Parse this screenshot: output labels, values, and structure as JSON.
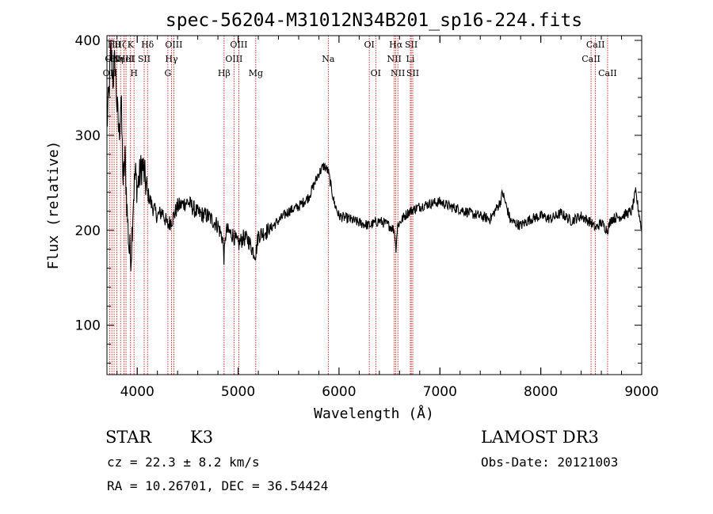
{
  "chart_data": {
    "type": "line",
    "title": "spec-56204-M31012N34B201_sp16-224.fits",
    "xlabel": "Wavelength (Å)",
    "ylabel": "Flux (relative)",
    "xlim": [
      3700,
      9000
    ],
    "ylim": [
      48,
      405
    ],
    "xticks": [
      4000,
      5000,
      6000,
      7000,
      8000,
      9000
    ],
    "yticks": [
      100,
      200,
      300,
      400
    ],
    "grid": false,
    "series_color": "#000000",
    "line_marker_color": "#cc0000",
    "series": [
      {
        "x": [
          3700,
          3720,
          3740,
          3760,
          3780,
          3800,
          3820,
          3840,
          3860,
          3880,
          3900,
          3920,
          3940,
          3960,
          3980,
          4000,
          4050,
          4100,
          4150,
          4200,
          4250,
          4300,
          4350,
          4400,
          4500,
          4600,
          4700,
          4800,
          4850,
          4861,
          4880,
          4950,
          5000,
          5050,
          5100,
          5150,
          5175,
          5200,
          5300,
          5400,
          5500,
          5600,
          5700,
          5800,
          5850,
          5893,
          5950,
          6000,
          6100,
          6200,
          6300,
          6400,
          6500,
          6550,
          6563,
          6580,
          6650,
          6700,
          6800,
          6900,
          7000,
          7100,
          7200,
          7300,
          7400,
          7500,
          7600,
          7620,
          7700,
          7800,
          7900,
          8000,
          8100,
          8200,
          8300,
          8400,
          8500,
          8540,
          8600,
          8660,
          8700,
          8800,
          8900,
          8940,
          9000
        ],
        "y": [
          310,
          345,
          390,
          360,
          380,
          330,
          300,
          340,
          250,
          275,
          220,
          180,
          175,
          230,
          260,
          245,
          270,
          240,
          225,
          215,
          220,
          205,
          212,
          225,
          230,
          218,
          215,
          205,
          190,
          170,
          200,
          195,
          185,
          192,
          190,
          178,
          175,
          195,
          200,
          210,
          220,
          225,
          235,
          260,
          268,
          262,
          230,
          215,
          212,
          208,
          205,
          210,
          205,
          200,
          180,
          205,
          215,
          220,
          225,
          228,
          230,
          225,
          222,
          218,
          215,
          212,
          230,
          240,
          210,
          205,
          212,
          215,
          212,
          218,
          210,
          215,
          208,
          202,
          208,
          200,
          212,
          215,
          220,
          240,
          200
        ]
      }
    ],
    "spectral_lines": [
      {
        "x": 3727,
        "row": 2,
        "label": "OII"
      },
      {
        "x": 3749,
        "row": 1,
        "label": "OII"
      },
      {
        "x": 3771,
        "row": 0,
        "label": "Hθ"
      },
      {
        "x": 3798,
        "row": 1,
        "label": "Hη"
      },
      {
        "x": 3835,
        "row": 0,
        "label": "Hζ"
      },
      {
        "x": 3869,
        "row": 1,
        "label": "NeIII"
      },
      {
        "x": 3889,
        "row": 1,
        "label": "HeI"
      },
      {
        "x": 3934,
        "row": 0,
        "label": "K"
      },
      {
        "x": 3968,
        "row": 2,
        "label": "H"
      },
      {
        "x": 4069,
        "row": 1,
        "label": "SII"
      },
      {
        "x": 4102,
        "row": 0,
        "label": "Hδ"
      },
      {
        "x": 4304,
        "row": 2,
        "label": "G"
      },
      {
        "x": 4340,
        "row": 1,
        "label": "Hγ"
      },
      {
        "x": 4363,
        "row": 0,
        "label": "OIII"
      },
      {
        "x": 4861,
        "row": 2,
        "label": "Hβ"
      },
      {
        "x": 4959,
        "row": 1,
        "label": "OIII"
      },
      {
        "x": 5007,
        "row": 0,
        "label": "OIII"
      },
      {
        "x": 5175,
        "row": 2,
        "label": "Mg"
      },
      {
        "x": 5893,
        "row": 1,
        "label": "Na"
      },
      {
        "x": 6300,
        "row": 0,
        "label": "OI"
      },
      {
        "x": 6364,
        "row": 2,
        "label": "OI"
      },
      {
        "x": 6548,
        "row": 1,
        "label": "NII"
      },
      {
        "x": 6563,
        "row": 0,
        "label": "Hα"
      },
      {
        "x": 6583,
        "row": 2,
        "label": "NII"
      },
      {
        "x": 6707,
        "row": 1,
        "label": "Li"
      },
      {
        "x": 6716,
        "row": 0,
        "label": "SII"
      },
      {
        "x": 6731,
        "row": 2,
        "label": "SII"
      },
      {
        "x": 8498,
        "row": 1,
        "label": "CaII"
      },
      {
        "x": 8542,
        "row": 0,
        "label": "CaII"
      },
      {
        "x": 8662,
        "row": 2,
        "label": "CaII"
      }
    ]
  },
  "info": {
    "class": "STAR",
    "subclass": "K3",
    "survey": "LAMOST DR3",
    "cz": "cz = 22.3 ± 8.2 km/s",
    "obs_date": "Obs-Date: 20121003",
    "coords": "RA =  10.26701, DEC =  36.54424"
  }
}
